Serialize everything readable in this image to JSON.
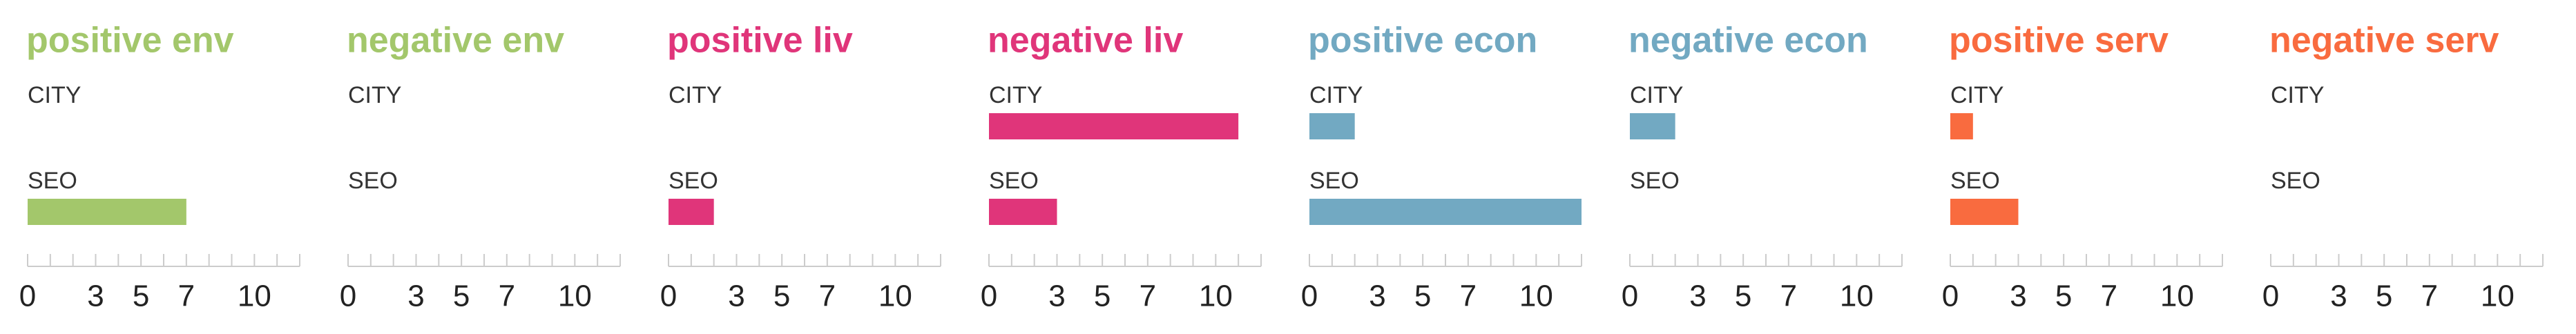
{
  "chart_data": [
    {
      "type": "bar",
      "orientation": "horizontal",
      "title": "positive env",
      "color": "#a3c76b",
      "categories": [
        "CITY",
        "SEO"
      ],
      "values": [
        0,
        7
      ],
      "xlim": [
        0,
        12
      ],
      "xticks": [
        0,
        3,
        5,
        7,
        10
      ],
      "minor_xticks": [
        0,
        1,
        2,
        3,
        4,
        5,
        6,
        7,
        8,
        9,
        10,
        11,
        12
      ]
    },
    {
      "type": "bar",
      "orientation": "horizontal",
      "title": "negative env",
      "color": "#a3c76b",
      "categories": [
        "CITY",
        "SEO"
      ],
      "values": [
        0,
        0
      ],
      "xlim": [
        0,
        12
      ],
      "xticks": [
        0,
        3,
        5,
        7,
        10
      ],
      "minor_xticks": [
        0,
        1,
        2,
        3,
        4,
        5,
        6,
        7,
        8,
        9,
        10,
        11,
        12
      ]
    },
    {
      "type": "bar",
      "orientation": "horizontal",
      "title": "positive liv",
      "color": "#e0357a",
      "categories": [
        "CITY",
        "SEO"
      ],
      "values": [
        0,
        2
      ],
      "xlim": [
        0,
        12
      ],
      "xticks": [
        0,
        3,
        5,
        7,
        10
      ],
      "minor_xticks": [
        0,
        1,
        2,
        3,
        4,
        5,
        6,
        7,
        8,
        9,
        10,
        11,
        12
      ]
    },
    {
      "type": "bar",
      "orientation": "horizontal",
      "title": "negative liv",
      "color": "#e0357a",
      "categories": [
        "CITY",
        "SEO"
      ],
      "values": [
        11,
        3
      ],
      "xlim": [
        0,
        12
      ],
      "xticks": [
        0,
        3,
        5,
        7,
        10
      ],
      "minor_xticks": [
        0,
        1,
        2,
        3,
        4,
        5,
        6,
        7,
        8,
        9,
        10,
        11,
        12
      ]
    },
    {
      "type": "bar",
      "orientation": "horizontal",
      "title": "positive econ",
      "color": "#72a9c2",
      "categories": [
        "CITY",
        "SEO"
      ],
      "values": [
        2,
        12
      ],
      "xlim": [
        0,
        12
      ],
      "xticks": [
        0,
        3,
        5,
        7,
        10
      ],
      "minor_xticks": [
        0,
        1,
        2,
        3,
        4,
        5,
        6,
        7,
        8,
        9,
        10,
        11,
        12
      ]
    },
    {
      "type": "bar",
      "orientation": "horizontal",
      "title": "negative econ",
      "color": "#72a9c2",
      "categories": [
        "CITY",
        "SEO"
      ],
      "values": [
        2,
        0
      ],
      "xlim": [
        0,
        12
      ],
      "xticks": [
        0,
        3,
        5,
        7,
        10
      ],
      "minor_xticks": [
        0,
        1,
        2,
        3,
        4,
        5,
        6,
        7,
        8,
        9,
        10,
        11,
        12
      ]
    },
    {
      "type": "bar",
      "orientation": "horizontal",
      "title": "positive serv",
      "color": "#f96b3f",
      "categories": [
        "CITY",
        "SEO"
      ],
      "values": [
        1,
        3
      ],
      "xlim": [
        0,
        12
      ],
      "xticks": [
        0,
        3,
        5,
        7,
        10
      ],
      "minor_xticks": [
        0,
        1,
        2,
        3,
        4,
        5,
        6,
        7,
        8,
        9,
        10,
        11,
        12
      ]
    },
    {
      "type": "bar",
      "orientation": "horizontal",
      "title": "negative serv",
      "color": "#f96b3f",
      "categories": [
        "CITY",
        "SEO"
      ],
      "values": [
        0,
        0
      ],
      "xlim": [
        0,
        12
      ],
      "xticks": [
        0,
        3,
        5,
        7,
        10
      ],
      "minor_xticks": [
        0,
        1,
        2,
        3,
        4,
        5,
        6,
        7,
        8,
        9,
        10,
        11,
        12
      ]
    }
  ]
}
